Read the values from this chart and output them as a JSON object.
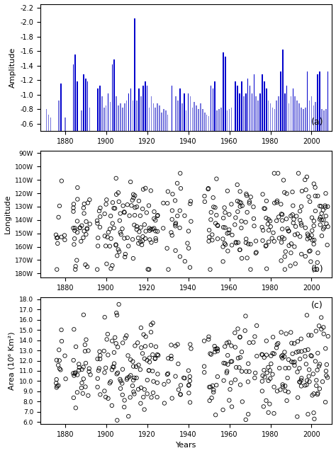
{
  "panel_a": {
    "label": "(a)",
    "ylabel": "Amplitude",
    "ylim": [
      -2.25,
      -0.5
    ],
    "yticks": [
      -2.2,
      -2.0,
      -1.8,
      -1.6,
      -1.4,
      -1.2,
      -1.0,
      -0.8,
      -0.6
    ],
    "bar_color_dark": "#0000CC",
    "bar_color_light": "#7777DD",
    "bar_width": 0.55
  },
  "panel_b": {
    "label": "(b)",
    "ylabel": "Longitude",
    "ylim": [
      88,
      183
    ],
    "yticks": [
      90,
      100,
      110,
      120,
      130,
      140,
      150,
      160,
      170,
      180
    ],
    "ytick_labels": [
      "90W",
      "100W",
      "110W",
      "120W",
      "130W",
      "140W",
      "150W",
      "160W",
      "170W",
      "180W"
    ]
  },
  "panel_c": {
    "label": "(c)",
    "ylabel": "Area (10⁶ Km²)",
    "ylim": [
      5.8,
      18.2
    ],
    "yticks": [
      6.0,
      7.0,
      8.0,
      9.0,
      10.0,
      11.0,
      12.0,
      13.0,
      14.0,
      15.0,
      16.0,
      17.0,
      18.0
    ]
  },
  "xlim": [
    1868,
    2010
  ],
  "xticks": [
    1880,
    1900,
    1920,
    1940,
    1960,
    1980,
    2000
  ],
  "xlabel": "Years",
  "background_color": "#FFFFFF"
}
